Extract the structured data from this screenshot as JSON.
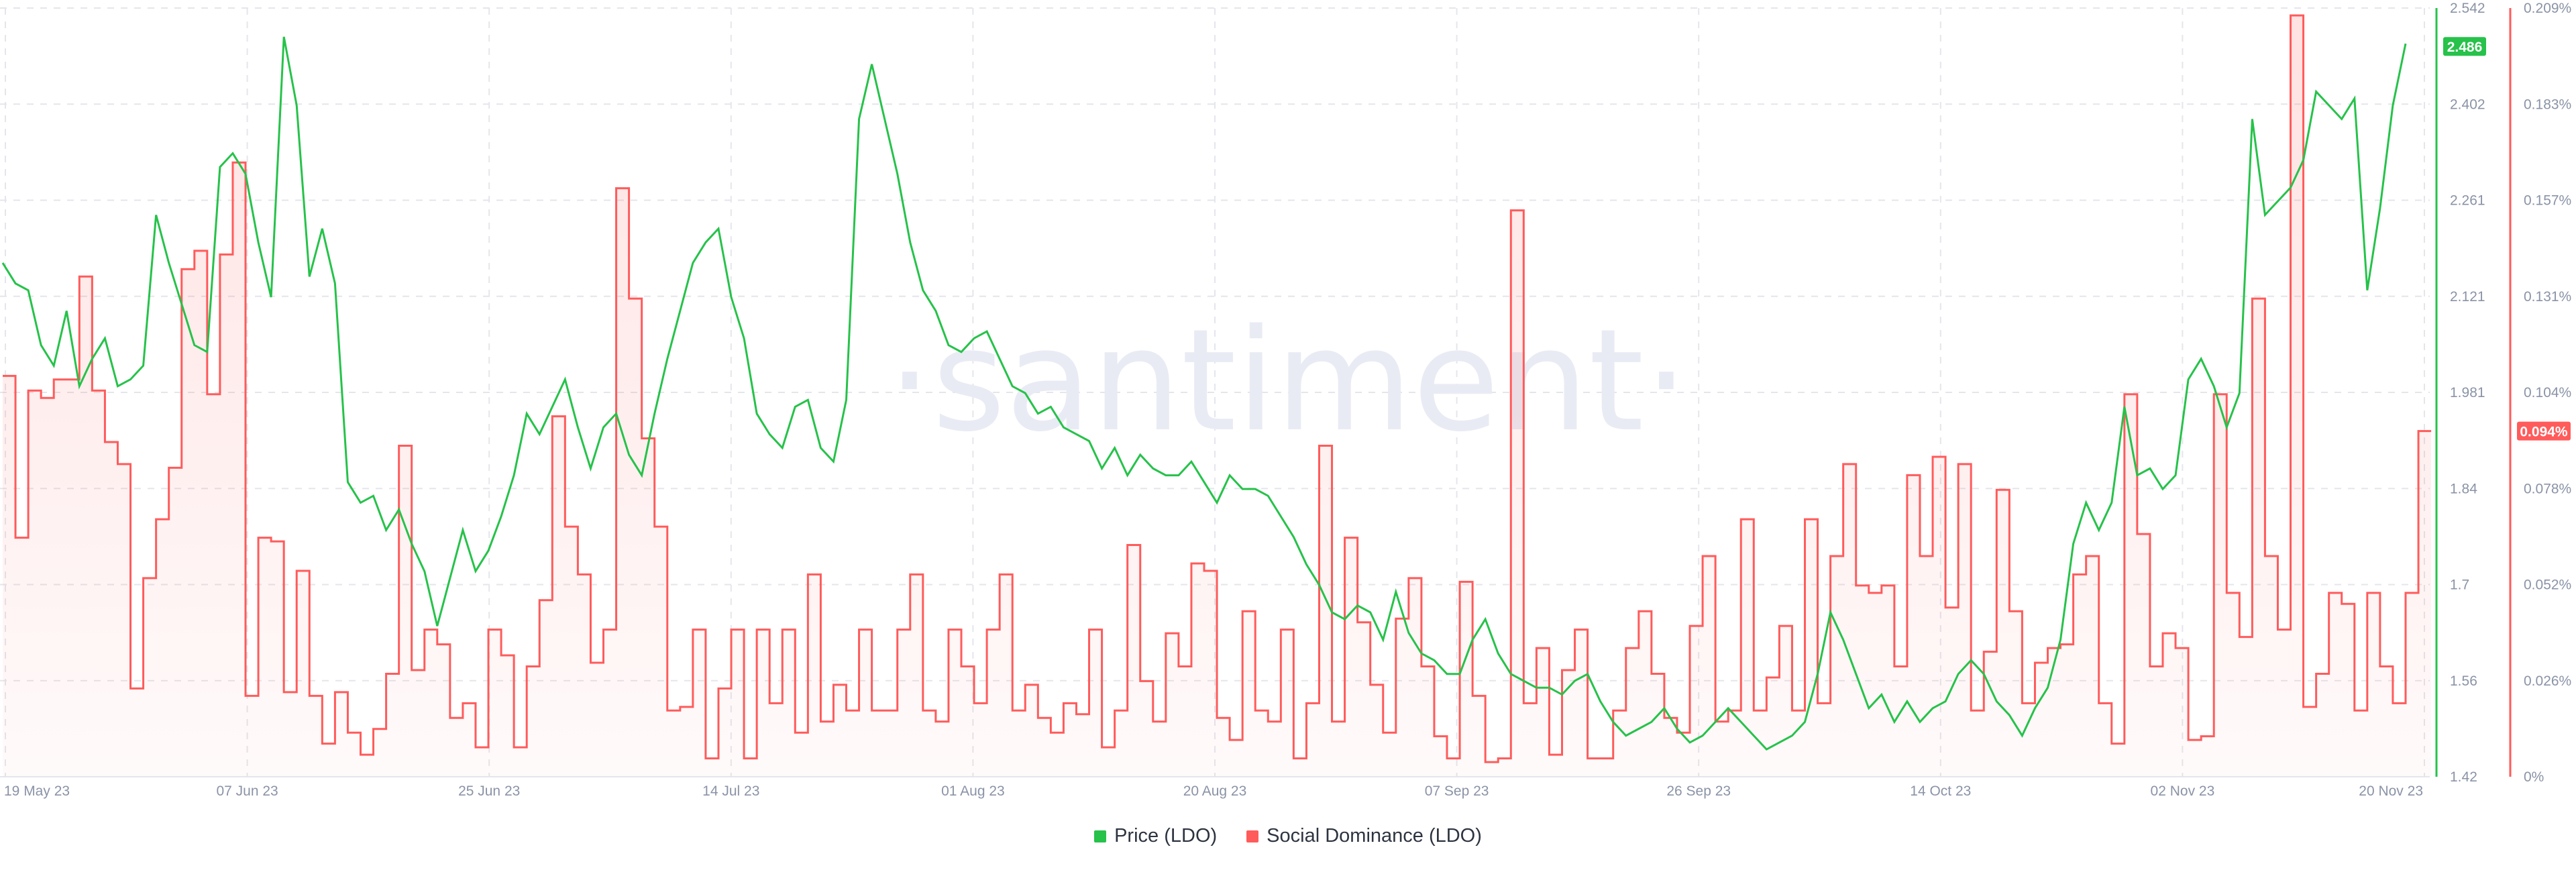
{
  "chart_data": {
    "type": "line",
    "watermark": "·santiment·",
    "x_ticks": [
      "19 May 23",
      "07 Jun 23",
      "25 Jun 23",
      "14 Jul 23",
      "01 Aug 23",
      "20 Aug 23",
      "07 Sep 23",
      "26 Sep 23",
      "14 Oct 23",
      "02 Nov 23",
      "20 Nov 23"
    ],
    "y_left_axis": {
      "series": "Price (LDO)",
      "ticks": [
        "2.542",
        "2.402",
        "2.261",
        "2.121",
        "1.981",
        "1.84",
        "1.7",
        "1.56",
        "1.42"
      ],
      "ylim": [
        1.42,
        2.542
      ],
      "current_label": "2.486",
      "current_value": 2.486
    },
    "y_right_axis": {
      "series": "Social Dominance (LDO)",
      "ticks": [
        "0.209%",
        "0.183%",
        "0.157%",
        "0.131%",
        "0.104%",
        "0.078%",
        "0.052%",
        "0.026%",
        "0%"
      ],
      "ylim": [
        0,
        0.209
      ],
      "current_label": "0.094%",
      "current_value": 0.094
    },
    "series": [
      {
        "name": "Price (LDO)",
        "color": "#26c24a",
        "axis": "left",
        "values": [
          2.17,
          2.14,
          2.13,
          2.05,
          2.02,
          2.1,
          1.99,
          2.03,
          2.06,
          1.99,
          2.0,
          2.02,
          2.24,
          2.17,
          2.11,
          2.05,
          2.04,
          2.31,
          2.33,
          2.3,
          2.2,
          2.12,
          2.5,
          2.4,
          2.15,
          2.22,
          2.14,
          1.85,
          1.82,
          1.83,
          1.78,
          1.81,
          1.76,
          1.72,
          1.64,
          1.71,
          1.78,
          1.72,
          1.75,
          1.8,
          1.86,
          1.95,
          1.92,
          1.96,
          2.0,
          1.93,
          1.87,
          1.93,
          1.95,
          1.89,
          1.86,
          1.95,
          2.03,
          2.1,
          2.17,
          2.2,
          2.22,
          2.12,
          2.06,
          1.95,
          1.92,
          1.9,
          1.96,
          1.97,
          1.9,
          1.88,
          1.97,
          2.38,
          2.46,
          2.38,
          2.3,
          2.2,
          2.13,
          2.1,
          2.05,
          2.04,
          2.06,
          2.07,
          2.03,
          1.99,
          1.98,
          1.95,
          1.96,
          1.93,
          1.92,
          1.91,
          1.87,
          1.9,
          1.86,
          1.89,
          1.87,
          1.86,
          1.86,
          1.88,
          1.85,
          1.82,
          1.86,
          1.84,
          1.84,
          1.83,
          1.8,
          1.77,
          1.73,
          1.7,
          1.66,
          1.65,
          1.67,
          1.66,
          1.62,
          1.69,
          1.63,
          1.6,
          1.59,
          1.57,
          1.57,
          1.62,
          1.65,
          1.6,
          1.57,
          1.56,
          1.55,
          1.55,
          1.54,
          1.56,
          1.57,
          1.53,
          1.5,
          1.48,
          1.49,
          1.5,
          1.52,
          1.49,
          1.47,
          1.48,
          1.5,
          1.52,
          1.5,
          1.48,
          1.46,
          1.47,
          1.48,
          1.5,
          1.57,
          1.66,
          1.62,
          1.57,
          1.52,
          1.54,
          1.5,
          1.53,
          1.5,
          1.52,
          1.53,
          1.57,
          1.59,
          1.57,
          1.53,
          1.51,
          1.48,
          1.52,
          1.55,
          1.62,
          1.76,
          1.82,
          1.78,
          1.82,
          1.96,
          1.86,
          1.87,
          1.84,
          1.86,
          2.0,
          2.03,
          1.99,
          1.93,
          1.98,
          2.38,
          2.24,
          2.26,
          2.28,
          2.32,
          2.42,
          2.4,
          2.38,
          2.41,
          2.13,
          2.25,
          2.4,
          2.49
        ]
      },
      {
        "name": "Social Dominance (LDO)",
        "color": "#ff5b5b",
        "axis": "right",
        "values": [
          0.109,
          0.065,
          0.105,
          0.103,
          0.108,
          0.108,
          0.136,
          0.105,
          0.091,
          0.085,
          0.024,
          0.054,
          0.07,
          0.084,
          0.138,
          0.143,
          0.104,
          0.142,
          0.167,
          0.022,
          0.065,
          0.064,
          0.023,
          0.056,
          0.022,
          0.009,
          0.023,
          0.012,
          0.006,
          0.013,
          0.028,
          0.09,
          0.029,
          0.04,
          0.036,
          0.016,
          0.02,
          0.008,
          0.04,
          0.033,
          0.008,
          0.03,
          0.048,
          0.098,
          0.068,
          0.055,
          0.031,
          0.04,
          0.16,
          0.13,
          0.092,
          0.068,
          0.018,
          0.019,
          0.04,
          0.005,
          0.024,
          0.04,
          0.005,
          0.04,
          0.02,
          0.04,
          0.012,
          0.055,
          0.015,
          0.025,
          0.018,
          0.04,
          0.018,
          0.018,
          0.04,
          0.055,
          0.018,
          0.015,
          0.04,
          0.03,
          0.02,
          0.04,
          0.055,
          0.018,
          0.025,
          0.016,
          0.012,
          0.02,
          0.017,
          0.04,
          0.008,
          0.018,
          0.063,
          0.026,
          0.015,
          0.039,
          0.03,
          0.058,
          0.056,
          0.016,
          0.01,
          0.045,
          0.018,
          0.015,
          0.04,
          0.005,
          0.02,
          0.09,
          0.015,
          0.065,
          0.042,
          0.025,
          0.012,
          0.043,
          0.054,
          0.03,
          0.011,
          0.005,
          0.053,
          0.022,
          0.004,
          0.005,
          0.154,
          0.02,
          0.035,
          0.006,
          0.029,
          0.04,
          0.005,
          0.005,
          0.018,
          0.035,
          0.045,
          0.028,
          0.016,
          0.012,
          0.041,
          0.06,
          0.015,
          0.018,
          0.07,
          0.018,
          0.027,
          0.041,
          0.018,
          0.07,
          0.02,
          0.06,
          0.085,
          0.052,
          0.05,
          0.052,
          0.03,
          0.082,
          0.06,
          0.087,
          0.046,
          0.085,
          0.018,
          0.034,
          0.078,
          0.045,
          0.02,
          0.031,
          0.035,
          0.036,
          0.055,
          0.06,
          0.02,
          0.009,
          0.104,
          0.066,
          0.03,
          0.039,
          0.035,
          0.01,
          0.011,
          0.104,
          0.05,
          0.038,
          0.13,
          0.06,
          0.04,
          0.207,
          0.019,
          0.028,
          0.05,
          0.047,
          0.018,
          0.05,
          0.03,
          0.02,
          0.05,
          0.094
        ]
      }
    ],
    "legend": [
      {
        "label": "Price (LDO)",
        "color": "#26c24a"
      },
      {
        "label": "Social Dominance (LDO)",
        "color": "#ff5b5b"
      }
    ],
    "grid": true,
    "legend_position": "bottom-center"
  }
}
